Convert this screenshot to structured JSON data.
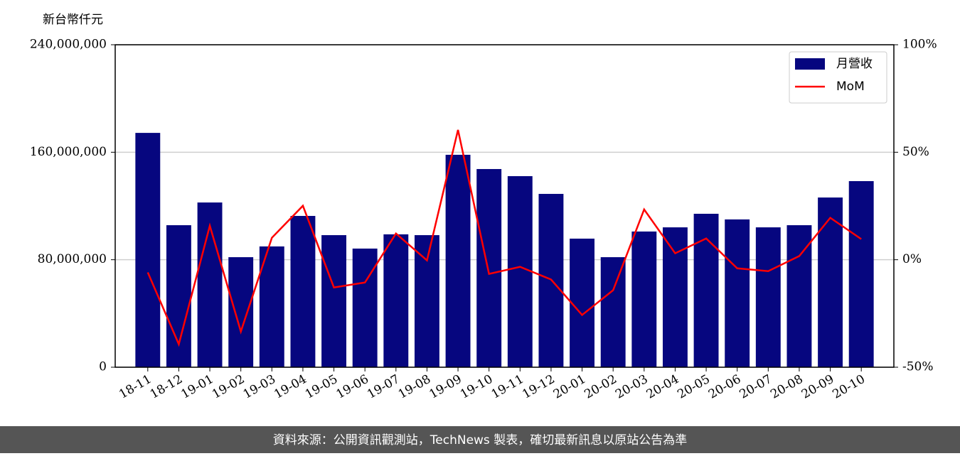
{
  "chart_data": {
    "type": "bar",
    "y_label": "新台幣仟元",
    "categories": [
      "18-11",
      "18-12",
      "19-01",
      "19-02",
      "19-03",
      "19-04",
      "19-05",
      "19-06",
      "19-07",
      "19-08",
      "19-09",
      "19-10",
      "19-11",
      "19-12",
      "20-01",
      "20-02",
      "20-03",
      "20-04",
      "20-05",
      "20-06",
      "20-07",
      "20-08",
      "20-09",
      "20-10"
    ],
    "series": [
      {
        "name": "月營收",
        "type": "bar",
        "color": "#06067f",
        "axis": "y",
        "values": [
          174400000,
          105700000,
          122600000,
          81900000,
          89900000,
          112600000,
          98300000,
          88300000,
          98900000,
          98300000,
          158100000,
          147500000,
          142200000,
          129000000,
          95700000,
          81900000,
          101000000,
          104100000,
          114200000,
          110000000,
          104100000,
          105700000,
          126300000,
          138500000
        ]
      },
      {
        "name": "MoM",
        "type": "line",
        "color": "#ff0000",
        "axis": "y2",
        "values": [
          -5.9,
          -39.3,
          15.8,
          -33.4,
          10.2,
          25.1,
          -12.9,
          -10.6,
          12.2,
          -0.3,
          60.4,
          -6.6,
          -3.3,
          -9.2,
          -25.7,
          -14.2,
          23.4,
          3.0,
          9.9,
          -4.0,
          -5.3,
          1.7,
          19.5,
          9.6
        ]
      }
    ],
    "ylim": [
      0,
      240000000
    ],
    "yticks": [
      0,
      {
        "value": 80000000,
        "label": "80,000,000"
      },
      {
        "value": 160000000,
        "label": "160,000,000"
      },
      {
        "value": 240000000,
        "label": "240,000,000"
      }
    ],
    "y2lim": [
      -50,
      100
    ],
    "y2ticks": [
      {
        "value": -50,
        "label": "-50%"
      },
      {
        "value": 0,
        "label": "0%"
      },
      {
        "value": 50,
        "label": "50%"
      },
      {
        "value": 100,
        "label": "100%"
      }
    ],
    "grid": true,
    "legend": "upper right"
  },
  "footer": "資料來源：公開資訊觀測站，TechNews 製表，確切最新訊息以原站公告為準"
}
